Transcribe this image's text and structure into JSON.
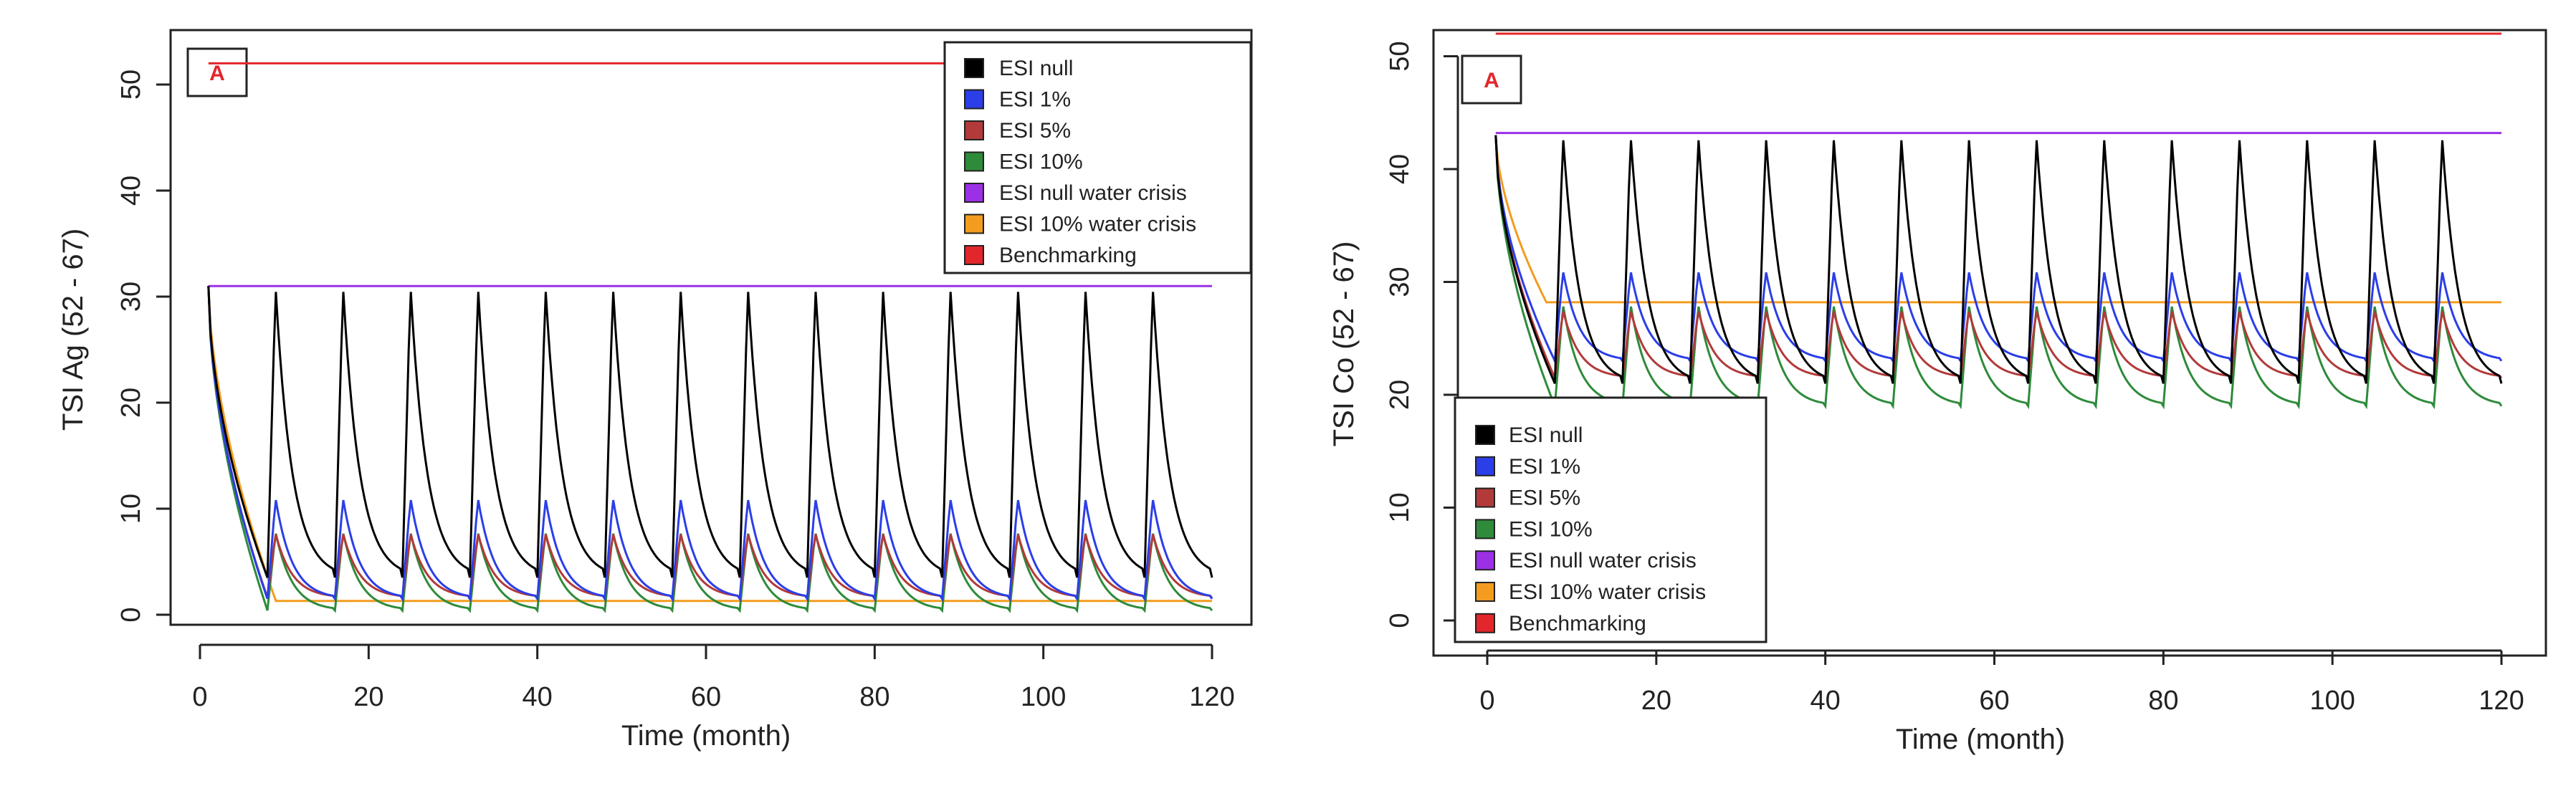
{
  "chart_data": [
    {
      "type": "line",
      "panel_label": "A",
      "title": "",
      "xlabel": "Time (month)",
      "ylabel": "TSI Ag (52 - 67)",
      "xlim": [
        0,
        120
      ],
      "ylim": [
        0,
        52
      ],
      "xticks": [
        0,
        20,
        40,
        60,
        80,
        100,
        120
      ],
      "yticks": [
        0,
        10,
        20,
        30,
        40,
        50
      ],
      "grid": false,
      "legend_position": "top-right",
      "colors": {
        "ESI null": "#000000",
        "ESI 1%": "#2b3ee8",
        "ESI 5%": "#b23a3a",
        "ESI 10%": "#2e8b3a",
        "ESI null water crisis": "#9b30e6",
        "ESI 10% water crisis": "#f39c1f",
        "Benchmarking": "#e3262b"
      },
      "legend": [
        "ESI null",
        "ESI 1%",
        "ESI 5%",
        "ESI 10%",
        "ESI null water crisis",
        "ESI 10% water crisis",
        "Benchmarking"
      ],
      "series_params": {
        "start": 31,
        "period": 8,
        "first_peak": 9,
        "ESI null": {
          "peak": 31,
          "min": 3.5
        },
        "ESI 1%": {
          "peak": 11,
          "min": 1.5
        },
        "ESI 5%": {
          "peak": 7.7,
          "min": 1.6
        },
        "ESI 10%": {
          "peak": 7.8,
          "min": 0.4
        },
        "ESI null water crisis": {
          "constant": 31
        },
        "ESI 10% water crisis": {
          "floor": 1.3,
          "drop_by": 9
        },
        "Benchmarking": {
          "constant": 52
        }
      }
    },
    {
      "type": "line",
      "panel_label": "A",
      "title": "",
      "xlabel": "Time (month)",
      "ylabel": "TSI Co (52 - 67)",
      "xlim": [
        0,
        120
      ],
      "ylim": [
        0,
        52
      ],
      "xticks": [
        0,
        20,
        40,
        60,
        80,
        100,
        120
      ],
      "yticks": [
        0,
        10,
        20,
        30,
        40,
        50
      ],
      "grid": false,
      "legend_position": "bottom-left",
      "colors": {
        "ESI null": "#000000",
        "ESI 1%": "#2b3ee8",
        "ESI 5%": "#b23a3a",
        "ESI 10%": "#2e8b3a",
        "ESI null water crisis": "#9b30e6",
        "ESI 10% water crisis": "#f39c1f",
        "Benchmarking": "#e3262b"
      },
      "legend": [
        "ESI null",
        "ESI 1%",
        "ESI 5%",
        "ESI 10%",
        "ESI null water crisis",
        "ESI 10% water crisis",
        "Benchmarking"
      ],
      "series_params": {
        "start": 43,
        "period": 8,
        "first_peak": 9,
        "ESI null": {
          "peak": 43,
          "min": 21
        },
        "ESI 1%": {
          "peak": 31,
          "min": 23
        },
        "ESI 5%": {
          "peak": 27.5,
          "min": 21.5
        },
        "ESI 10%": {
          "peak": 28,
          "min": 19
        },
        "ESI null water crisis": {
          "constant": 43.2
        },
        "ESI 10% water crisis": {
          "floor": 28.2,
          "drop_by": 7
        },
        "Benchmarking": {
          "constant": 52
        }
      }
    }
  ]
}
